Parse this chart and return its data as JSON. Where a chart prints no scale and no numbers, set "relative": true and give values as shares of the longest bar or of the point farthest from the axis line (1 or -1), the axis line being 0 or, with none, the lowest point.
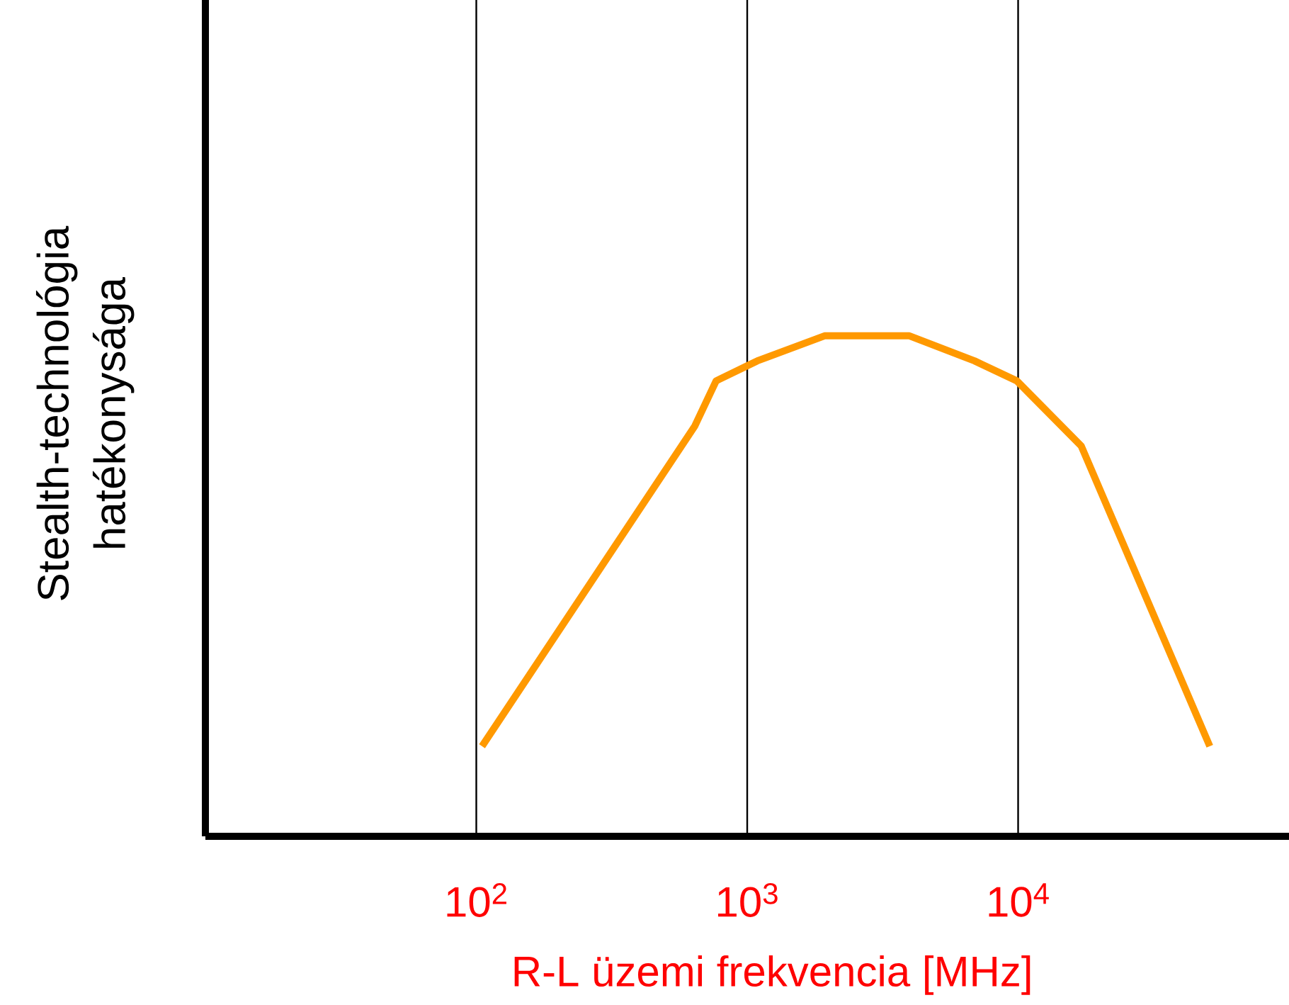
{
  "chart_data": {
    "type": "line",
    "xlabel": "R-L üzemi frekvencia [MHz]",
    "ylabel": "Stealth-technológia hatékonysága",
    "log": "x",
    "relative": true,
    "grid": "x",
    "marker": "none",
    "line_style": "solid",
    "xlim": [
      10,
      100000
    ],
    "xticks": [
      {
        "value": 100,
        "label": "10$^{2}$"
      },
      {
        "value": 1000,
        "label": "10$^{3}$"
      },
      {
        "value": 10000,
        "label": "10$^{4}$"
      }
    ],
    "series": [
      {
        "color": "#ff9900",
        "x": [
          105,
          641,
          768,
          1090,
          1930,
          2770,
          3970,
          6900,
          9890,
          17100,
          51000
        ],
        "values": [
          0.18,
          0.82,
          0.91,
          0.95,
          1,
          1,
          1,
          0.95,
          0.91,
          0.78,
          0.18
        ]
      }
    ]
  }
}
